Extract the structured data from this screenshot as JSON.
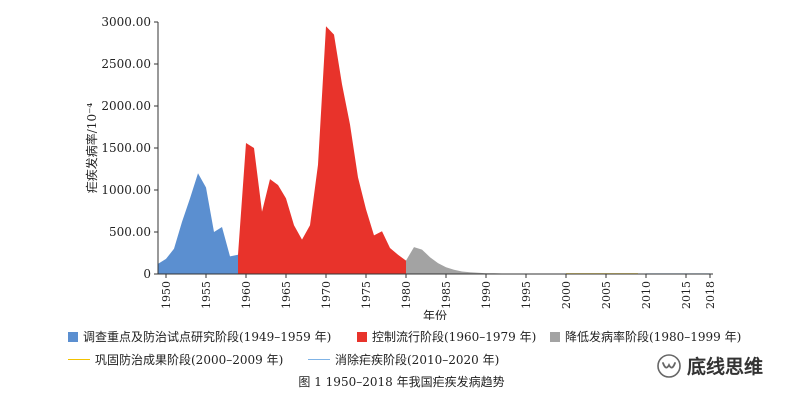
{
  "chart_data": {
    "type": "area",
    "title": "",
    "xlabel": "年份",
    "ylabel": "疟疾发病率/10⁻⁴",
    "xlim": [
      1949,
      2018
    ],
    "ylim": [
      0,
      3000
    ],
    "x_ticks": [
      1950,
      1955,
      1960,
      1965,
      1970,
      1975,
      1980,
      1985,
      1990,
      1995,
      2000,
      2005,
      2010,
      2015,
      2018
    ],
    "y_ticks": [
      {
        "value": 0,
        "label": "0"
      },
      {
        "value": 500,
        "label": "500.00"
      },
      {
        "value": 1000,
        "label": "1000.00"
      },
      {
        "value": 1500,
        "label": "1500.00"
      },
      {
        "value": 2000,
        "label": "2000.00"
      },
      {
        "value": 2500,
        "label": "2500.00"
      },
      {
        "value": 3000,
        "label": "3000.00"
      }
    ],
    "series": [
      {
        "name": "调查重点及防治试点研究阶段(1949–1959 年)",
        "color": "#5b8fd0",
        "style": "area",
        "points": [
          [
            1949,
            120
          ],
          [
            1950,
            180
          ],
          [
            1951,
            300
          ],
          [
            1952,
            620
          ],
          [
            1953,
            900
          ],
          [
            1954,
            1200
          ],
          [
            1955,
            1030
          ],
          [
            1956,
            500
          ],
          [
            1957,
            560
          ],
          [
            1958,
            210
          ],
          [
            1959,
            230
          ]
        ]
      },
      {
        "name": "控制流行阶段(1960–1979 年)",
        "color": "#e8332b",
        "style": "area",
        "points": [
          [
            1959,
            230
          ],
          [
            1960,
            1560
          ],
          [
            1961,
            1500
          ],
          [
            1962,
            740
          ],
          [
            1963,
            1130
          ],
          [
            1964,
            1060
          ],
          [
            1965,
            900
          ],
          [
            1966,
            580
          ],
          [
            1967,
            410
          ],
          [
            1968,
            580
          ],
          [
            1969,
            1300
          ],
          [
            1970,
            2950
          ],
          [
            1971,
            2850
          ],
          [
            1972,
            2260
          ],
          [
            1973,
            1780
          ],
          [
            1974,
            1150
          ],
          [
            1975,
            770
          ],
          [
            1976,
            460
          ],
          [
            1977,
            510
          ],
          [
            1978,
            310
          ],
          [
            1979,
            230
          ],
          [
            1980,
            160
          ]
        ]
      },
      {
        "name": "降低发病率阶段(1980–1999 年)",
        "color": "#a3a3a3",
        "style": "area",
        "points": [
          [
            1980,
            160
          ],
          [
            1981,
            320
          ],
          [
            1982,
            290
          ],
          [
            1983,
            200
          ],
          [
            1984,
            130
          ],
          [
            1985,
            80
          ],
          [
            1986,
            50
          ],
          [
            1987,
            30
          ],
          [
            1988,
            20
          ],
          [
            1989,
            14
          ],
          [
            1990,
            10
          ],
          [
            1991,
            8
          ],
          [
            1992,
            6
          ],
          [
            1993,
            5
          ],
          [
            1994,
            4
          ],
          [
            1995,
            4
          ],
          [
            1996,
            3
          ],
          [
            1997,
            3
          ],
          [
            1998,
            2
          ],
          [
            1999,
            2
          ]
        ]
      },
      {
        "name": "巩固防治成果阶段(2000–2009 年)",
        "color": "#f2c200",
        "style": "line",
        "points": [
          [
            2000,
            2
          ],
          [
            2001,
            2
          ],
          [
            2002,
            3
          ],
          [
            2003,
            3
          ],
          [
            2004,
            3
          ],
          [
            2005,
            3
          ],
          [
            2006,
            4
          ],
          [
            2007,
            4
          ],
          [
            2008,
            3
          ],
          [
            2009,
            2
          ]
        ]
      },
      {
        "name": "消除疟疾阶段(2010–2020 年)",
        "color": "#7fb3e6",
        "style": "line",
        "points": [
          [
            2010,
            1
          ],
          [
            2011,
            1
          ],
          [
            2012,
            1
          ],
          [
            2013,
            1
          ],
          [
            2014,
            1
          ],
          [
            2015,
            1
          ],
          [
            2016,
            1
          ],
          [
            2017,
            1
          ],
          [
            2018,
            1
          ]
        ]
      }
    ],
    "legend_position": "bottom",
    "grid": false
  },
  "caption": "图 1   1950–2018 年我国疟疾发病趋势",
  "watermark": {
    "text": "底线思维",
    "icon": "wechat-channel-icon"
  }
}
